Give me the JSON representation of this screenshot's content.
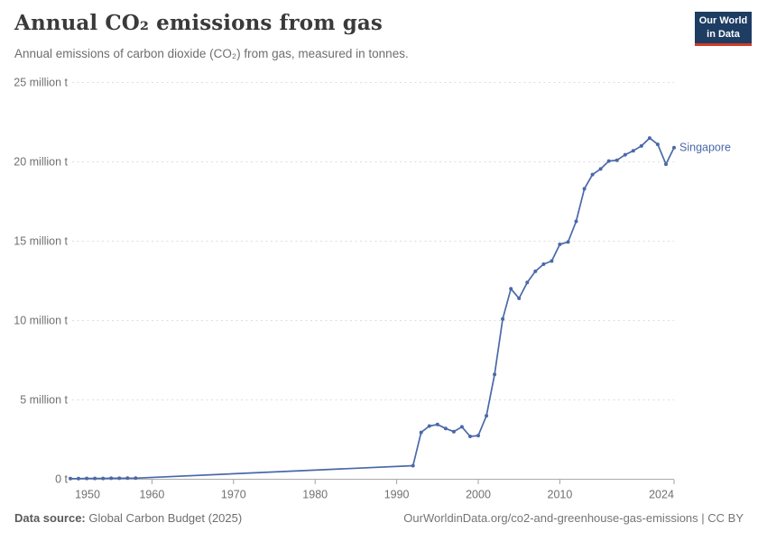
{
  "header": {
    "title": "Annual CO₂ emissions from gas",
    "subtitle": "Annual emissions of carbon dioxide (CO₂) from gas, measured in tonnes.",
    "logo": {
      "line1": "Our World",
      "line2": "in Data"
    }
  },
  "chart_data": {
    "type": "line",
    "title": "Annual CO₂ emissions from gas",
    "xlabel": "",
    "ylabel": "",
    "unit": "million tonnes",
    "xlim": [
      1950,
      2024
    ],
    "ylim": [
      0,
      25
    ],
    "grid": "horizontal-dashed",
    "legend_position": "end-of-line-label",
    "x_ticks": [
      1950,
      1960,
      1970,
      1980,
      1990,
      2000,
      2010,
      2024
    ],
    "y_ticks": [
      {
        "value": 0,
        "label": "0 t"
      },
      {
        "value": 5,
        "label": "5 million t"
      },
      {
        "value": 10,
        "label": "10 million t"
      },
      {
        "value": 15,
        "label": "15 million t"
      },
      {
        "value": 20,
        "label": "20 million t"
      },
      {
        "value": 25,
        "label": "25 million t"
      }
    ],
    "series": [
      {
        "name": "Singapore",
        "color": "#4a69a8",
        "points": [
          [
            1950,
            0.04
          ],
          [
            1951,
            0.04
          ],
          [
            1952,
            0.05
          ],
          [
            1953,
            0.05
          ],
          [
            1954,
            0.05
          ],
          [
            1955,
            0.06
          ],
          [
            1956,
            0.06
          ],
          [
            1957,
            0.07
          ],
          [
            1958,
            0.07
          ],
          [
            1992,
            0.85
          ],
          [
            1993,
            2.95
          ],
          [
            1994,
            3.35
          ],
          [
            1995,
            3.45
          ],
          [
            1996,
            3.2
          ],
          [
            1997,
            3.0
          ],
          [
            1998,
            3.3
          ],
          [
            1999,
            2.7
          ],
          [
            2000,
            2.75
          ],
          [
            2001,
            4.0
          ],
          [
            2002,
            6.6
          ],
          [
            2003,
            10.1
          ],
          [
            2004,
            12.0
          ],
          [
            2005,
            11.4
          ],
          [
            2006,
            12.4
          ],
          [
            2007,
            13.1
          ],
          [
            2008,
            13.55
          ],
          [
            2009,
            13.75
          ],
          [
            2010,
            14.8
          ],
          [
            2011,
            14.95
          ],
          [
            2012,
            16.25
          ],
          [
            2013,
            18.3
          ],
          [
            2014,
            19.2
          ],
          [
            2015,
            19.55
          ],
          [
            2016,
            20.05
          ],
          [
            2017,
            20.1
          ],
          [
            2018,
            20.45
          ],
          [
            2019,
            20.7
          ],
          [
            2020,
            21.0
          ],
          [
            2021,
            21.5
          ],
          [
            2022,
            21.1
          ],
          [
            2023,
            19.85
          ],
          [
            2024,
            20.9
          ]
        ]
      }
    ]
  },
  "footer": {
    "source_label": "Data source:",
    "source_text": " Global Carbon Budget (2025)",
    "credit": "OurWorldinData.org/co2-and-greenhouse-gas-emissions | CC BY"
  },
  "colors": {
    "line": "#4a69a8",
    "gridline": "#dedede",
    "zero_axis": "#ababab",
    "tick": "#a0a0a0",
    "logo_bg": "#1d3d63",
    "logo_bar": "#d13a27"
  }
}
